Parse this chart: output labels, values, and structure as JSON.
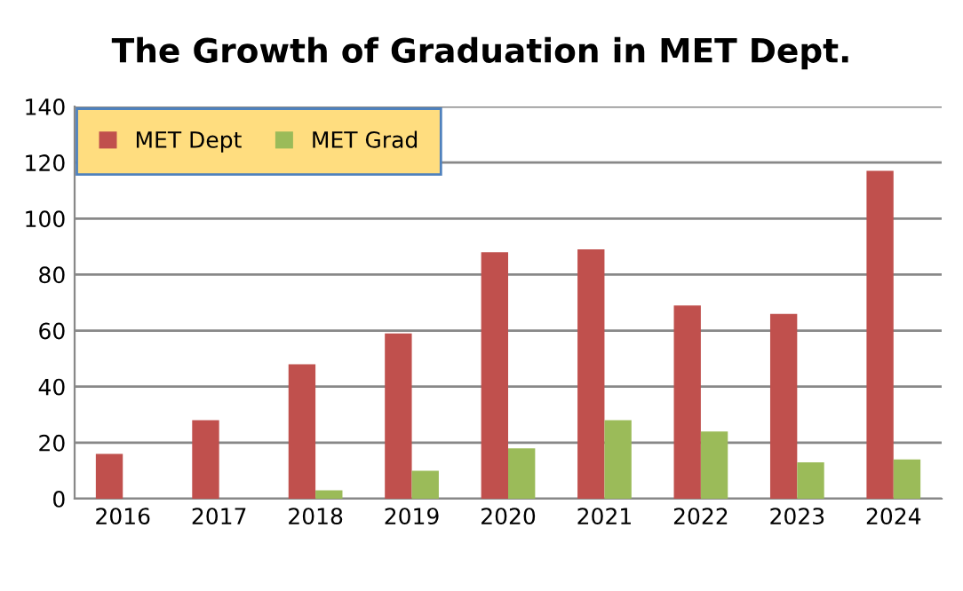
{
  "chart_data": {
    "type": "bar",
    "title": "The Growth of Graduation in MET Dept.",
    "categories": [
      "2016",
      "2017",
      "2018",
      "2019",
      "2020",
      "2021",
      "2022",
      "2023",
      "2024"
    ],
    "series": [
      {
        "name": "MET Dept",
        "color": "#c0504d",
        "values": [
          16,
          28,
          48,
          59,
          88,
          89,
          69,
          66,
          117
        ]
      },
      {
        "name": "MET Grad",
        "color": "#9bbb59",
        "values": [
          0,
          0,
          3,
          10,
          18,
          28,
          24,
          13,
          14
        ]
      }
    ],
    "ylim": [
      0,
      140
    ],
    "yticks": [
      0,
      20,
      40,
      60,
      80,
      100,
      120,
      140
    ],
    "grid": "y",
    "legend": "top left"
  }
}
